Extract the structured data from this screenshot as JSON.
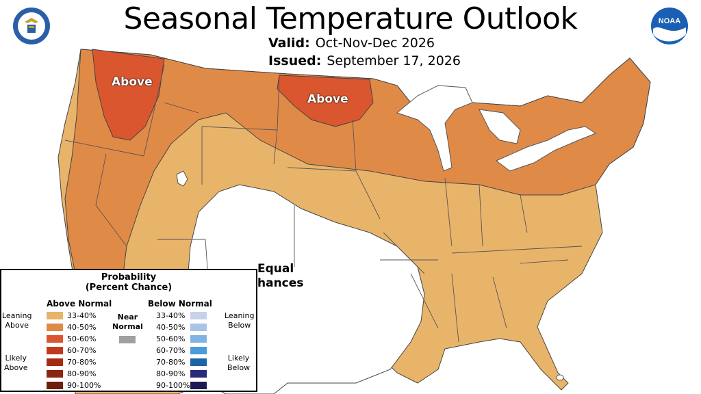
{
  "title": "Seasonal Temperature Outlook",
  "valid": {
    "label": "Valid:",
    "value": "Oct-Nov-Dec 2026"
  },
  "issued": {
    "label": "Issued:",
    "value": "September 17, 2026"
  },
  "map_labels": {
    "above_west": "Above",
    "above_north": "Above",
    "equal_chances_1": "Equal",
    "equal_chances_2": "hances"
  },
  "colors": {
    "above_33_40": "#e8b46a",
    "above_40_50": "#e08a48",
    "above_50_60": "#d9562e",
    "above_60_70": "#c23a1e",
    "above_70_80": "#a52a12",
    "above_80_90": "#8a2510",
    "above_90_100": "#6e1e0a",
    "near_normal": "#a0a0a0",
    "below_33_40": "#c5d2ea",
    "below_40_50": "#a8c4e6",
    "below_50_60": "#7fb4e2",
    "below_60_70": "#4a9cd8",
    "below_70_80": "#1c64a8",
    "below_80_90": "#2a2a7a",
    "below_90_100": "#1c1c55",
    "equal_chances": "#ffffff",
    "border": "#333333"
  },
  "legend": {
    "title_line1": "Probability",
    "title_line2": "(Percent Chance)",
    "above_header": "Above Normal",
    "below_header": "Below Normal",
    "near_line1": "Near",
    "near_line2": "Normal",
    "leaning_above_1": "Leaning",
    "leaning_above_2": "Above",
    "likely_above_1": "Likely",
    "likely_above_2": "Above",
    "leaning_below_1": "Leaning",
    "leaning_below_2": "Below",
    "likely_below_1": "Likely",
    "likely_below_2": "Below",
    "above_items": [
      "33-40%",
      "40-50%",
      "50-60%",
      "60-70%",
      "70-80%",
      "80-90%",
      "90-100%"
    ],
    "below_items": [
      "33-40%",
      "40-50%",
      "50-60%",
      "60-70%",
      "70-80%",
      "80-90%",
      "90-100%"
    ]
  },
  "logos": {
    "left": "department-of-commerce-seal",
    "right": "noaa-logo",
    "right_text": "NOAA"
  }
}
